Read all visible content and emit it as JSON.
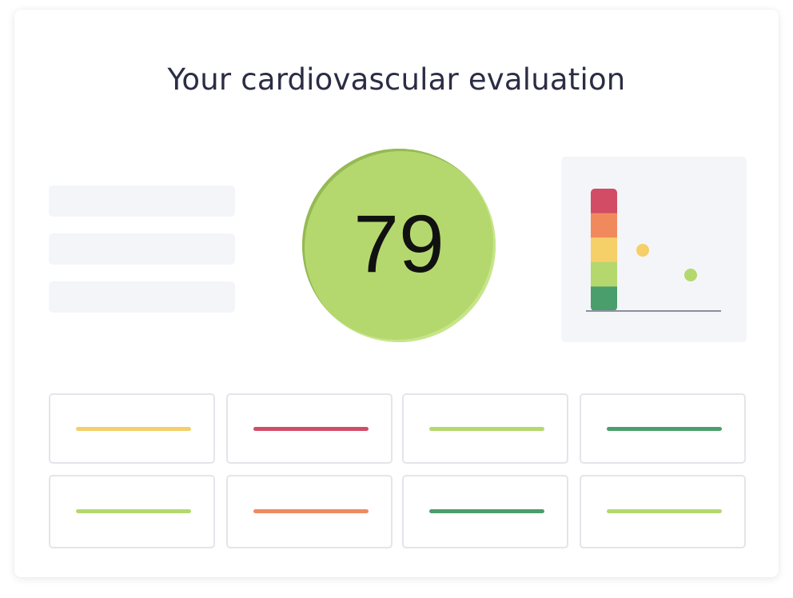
{
  "title": "Your cardiovascular evaluation",
  "score": {
    "value": "79",
    "color": "#b4d86e"
  },
  "skeleton_lines": [
    {
      "name": "placeholder-line-1"
    },
    {
      "name": "placeholder-line-2"
    },
    {
      "name": "placeholder-line-3"
    }
  ],
  "risk_scale": {
    "bands": [
      "#d24c65",
      "#f08a5d",
      "#f5cf67",
      "#b4d86e",
      "#4a9e6b"
    ],
    "markers": [
      {
        "color": "#f5cf67"
      },
      {
        "color": "#b4d86e"
      }
    ]
  },
  "metric_tiles": [
    {
      "color": "#f5cf67"
    },
    {
      "color": "#d24c65"
    },
    {
      "color": "#b4d86e"
    },
    {
      "color": "#4a9e6b"
    },
    {
      "color": "#b4d86e"
    },
    {
      "color": "#f08a5d"
    },
    {
      "color": "#4a9e6b"
    },
    {
      "color": "#b4d86e"
    }
  ]
}
